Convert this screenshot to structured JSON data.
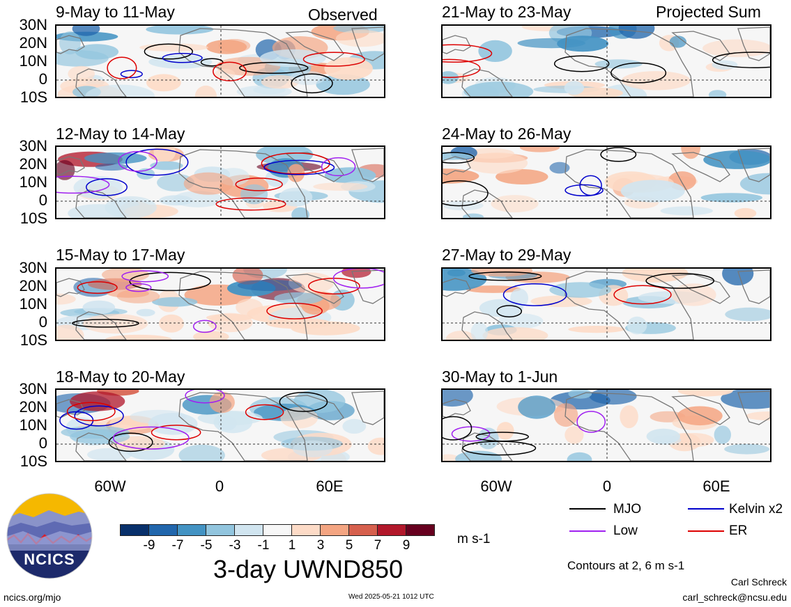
{
  "left_column": {
    "label": "Observed",
    "panels": [
      {
        "title": "9-May to 11-May"
      },
      {
        "title": "12-May to 14-May"
      },
      {
        "title": "15-May to 17-May"
      },
      {
        "title": "18-May to 20-May"
      }
    ]
  },
  "right_column": {
    "label": "Projected Sum",
    "panels": [
      {
        "title": "21-May to 23-May"
      },
      {
        "title": "24-May to 26-May"
      },
      {
        "title": "27-May to 29-May"
      },
      {
        "title": "30-May to 1-Jun"
      }
    ]
  },
  "latitude_labels": [
    "30N",
    "20N",
    "10N",
    "0",
    "10S"
  ],
  "longitude_labels": [
    "60W",
    "0",
    "60E"
  ],
  "colorbar": {
    "ticks": [
      "-9",
      "-7",
      "-5",
      "-3",
      "-1",
      "1",
      "3",
      "5",
      "7",
      "9"
    ],
    "units": "m s-1",
    "colors": [
      "#08306b",
      "#2166ac",
      "#4393c3",
      "#92c5de",
      "#d1e5f0",
      "#f7f7f7",
      "#fddbc7",
      "#f4a582",
      "#d6604d",
      "#b2182b",
      "#67001f"
    ]
  },
  "main_title": "3-day UWND850",
  "legend": {
    "items": [
      {
        "label": "MJO",
        "color": "#000000"
      },
      {
        "label": "Kelvin x2",
        "color": "#0000cc"
      },
      {
        "label": "Low",
        "color": "#a020f0"
      },
      {
        "label": "ER",
        "color": "#dd0000"
      }
    ],
    "note": "Contours at 2, 6 m s-1"
  },
  "logo": {
    "text": "NCICS"
  },
  "footer": {
    "url": "ncics.org/mjo",
    "timestamp": "Wed 2025-05-21 1012 UTC",
    "author": "Carl Schreck",
    "email": "carl_schreck@ncsu.edu"
  }
}
